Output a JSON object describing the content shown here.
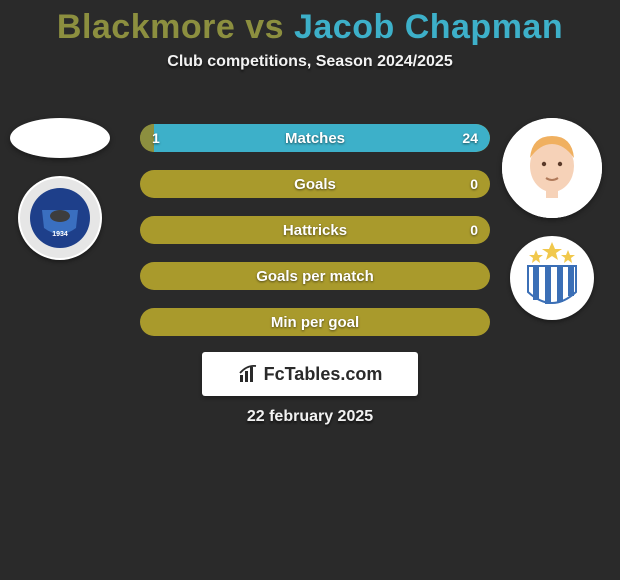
{
  "title": {
    "text_p1": "Blackmore",
    "text_vs": " vs ",
    "text_p2": "Jacob Chapman",
    "color_p1": "#8c8f3f",
    "color_p2": "#3db0c9",
    "fontsize": 34,
    "fontweight": 800
  },
  "subtitle": {
    "text": "Club competitions, Season 2024/2025",
    "color": "#f2f2f2",
    "fontsize": 16
  },
  "background_color": "#2a2a2a",
  "player_left": {
    "avatar_present": false,
    "club_name": "Peterborough United",
    "club_colors": {
      "outer": "#e6e6e6",
      "inner": "#1e3f8a",
      "accent": "#ffffff"
    }
  },
  "player_right": {
    "avatar_present": true,
    "avatar_hair": "#f0b060",
    "avatar_skin": "#f6d2b8",
    "avatar_shirt": "#ffffff",
    "club_name": "Huddersfield Town",
    "club_colors": {
      "stripes": "#3b6fb6",
      "bg": "#ffffff",
      "star": "#f1c84c"
    }
  },
  "bars": {
    "track_color": "#a99a2c",
    "left_color": "#8c8f3f",
    "right_color": "#3db0c9",
    "height": 28,
    "gap": 18,
    "border_radius": 14,
    "label_color": "#ffffff",
    "label_fontsize": 15,
    "val_fontsize": 14,
    "rows": [
      {
        "label": "Matches",
        "left_val": "1",
        "right_val": "24",
        "left_pct": 4,
        "right_pct": 96
      },
      {
        "label": "Goals",
        "left_val": "",
        "right_val": "0",
        "left_pct": 0,
        "right_pct": 0
      },
      {
        "label": "Hattricks",
        "left_val": "",
        "right_val": "0",
        "left_pct": 0,
        "right_pct": 0
      },
      {
        "label": "Goals per match",
        "left_val": "",
        "right_val": "",
        "left_pct": 0,
        "right_pct": 0
      },
      {
        "label": "Min per goal",
        "left_val": "",
        "right_val": "",
        "left_pct": 0,
        "right_pct": 0
      }
    ]
  },
  "brand": {
    "text": "FcTables.com",
    "bg": "#ffffff",
    "color": "#2a2a2a",
    "fontsize": 18
  },
  "date": {
    "text": "22 february 2025",
    "color": "#f2f2f2",
    "fontsize": 16
  }
}
